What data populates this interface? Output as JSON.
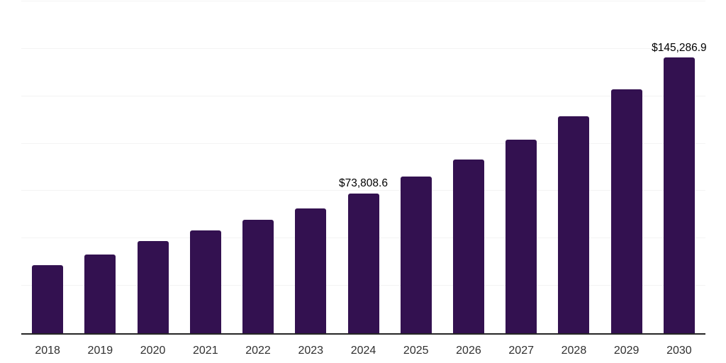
{
  "chart": {
    "background_color": "#ffffff",
    "bar_color": "#331150",
    "grid_color": "#f3f3f3",
    "axis_color": "#262626",
    "tick_label_color": "#303030",
    "data_label_color": "#000000"
  },
  "chart_data": {
    "type": "bar",
    "title": "",
    "xlabel": "",
    "ylabel": "",
    "categories": [
      "2018",
      "2019",
      "2020",
      "2021",
      "2022",
      "2023",
      "2024",
      "2025",
      "2026",
      "2027",
      "2028",
      "2029",
      "2030"
    ],
    "values": [
      36000,
      41600,
      48600,
      54300,
      59800,
      66000,
      73808.6,
      82500,
      91800,
      102000,
      114400,
      128700,
      145286.9
    ],
    "data_labels": [
      "",
      "",
      "",
      "",
      "",
      "",
      "$73,808.6",
      "",
      "",
      "",
      "",
      "",
      "$145,286.9"
    ],
    "labeled_points": [
      {
        "category": "2024",
        "value": 73808.6,
        "label": "$73,808.6"
      },
      {
        "category": "2030",
        "value": 145286.9,
        "label": "$145,286.9"
      }
    ],
    "ylim": [
      0,
      175000
    ],
    "grid_step": 25000,
    "grid": true,
    "legend": false,
    "y_axis_labels_visible": false
  }
}
